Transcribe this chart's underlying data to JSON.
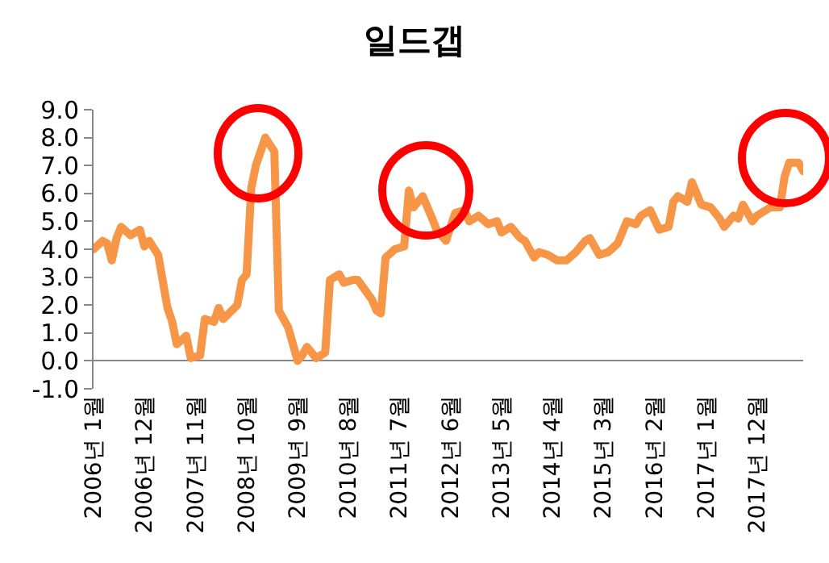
{
  "chart_data": {
    "type": "line",
    "title": "일드갭",
    "x": [
      "2006-01",
      "2006-03",
      "2006-04",
      "2006-05",
      "2006-06",
      "2006-07",
      "2006-09",
      "2006-11",
      "2006-12",
      "2007-01",
      "2007-03",
      "2007-05",
      "2007-06",
      "2007-07",
      "2007-09",
      "2007-10",
      "2007-12",
      "2008-01",
      "2008-03",
      "2008-04",
      "2008-05",
      "2008-08",
      "2008-09",
      "2008-10",
      "2008-11",
      "2008-12",
      "2009-02",
      "2009-04",
      "2009-05",
      "2009-07",
      "2009-09",
      "2009-10",
      "2009-11",
      "2010-01",
      "2010-03",
      "2010-04",
      "2010-06",
      "2010-07",
      "2010-09",
      "2010-10",
      "2011-01",
      "2011-02",
      "2011-03",
      "2011-04",
      "2011-06",
      "2011-08",
      "2011-09",
      "2011-10",
      "2011-12",
      "2012-02",
      "2012-03",
      "2012-05",
      "2012-07",
      "2012-09",
      "2012-10",
      "2012-12",
      "2013-02",
      "2013-04",
      "2013-05",
      "2013-07",
      "2013-09",
      "2013-10",
      "2013-12",
      "2014-01",
      "2014-03",
      "2014-05",
      "2014-07",
      "2014-09",
      "2014-11",
      "2014-12",
      "2015-02",
      "2015-04",
      "2015-06",
      "2015-08",
      "2015-10",
      "2015-11",
      "2016-01",
      "2016-03",
      "2016-05",
      "2016-06",
      "2016-07",
      "2016-09",
      "2016-10",
      "2016-12",
      "2017-02",
      "2017-04",
      "2017-05",
      "2017-07",
      "2017-08",
      "2017-09",
      "2017-11",
      "2017-12",
      "2018-03",
      "2018-05",
      "2018-06",
      "2018-07",
      "2018-09",
      "2018-10"
    ],
    "series": [
      {
        "color": "#f79646",
        "values": [
          4.0,
          4.3,
          4.2,
          3.6,
          4.4,
          4.8,
          4.5,
          4.7,
          4.1,
          4.3,
          3.8,
          1.9,
          1.4,
          0.6,
          0.9,
          0.1,
          0.2,
          1.5,
          1.4,
          1.9,
          1.5,
          2.0,
          2.9,
          3.1,
          6.2,
          7.0,
          8.0,
          7.5,
          1.8,
          1.2,
          0.0,
          0.2,
          0.5,
          0.1,
          0.3,
          2.9,
          3.1,
          2.8,
          2.9,
          2.9,
          2.2,
          1.8,
          1.7,
          3.7,
          4.0,
          4.1,
          6.1,
          5.5,
          5.9,
          5.1,
          4.7,
          4.3,
          5.3,
          5.4,
          5.0,
          5.2,
          4.9,
          5.0,
          4.6,
          4.8,
          4.4,
          4.3,
          3.7,
          3.9,
          3.8,
          3.6,
          3.6,
          3.9,
          4.3,
          4.4,
          3.8,
          3.9,
          4.2,
          5.0,
          4.9,
          5.2,
          5.4,
          4.7,
          4.8,
          5.7,
          5.9,
          5.7,
          6.4,
          5.6,
          5.5,
          5.1,
          4.8,
          5.2,
          5.1,
          5.6,
          5.0,
          5.2,
          5.5,
          5.5,
          6.6,
          7.1,
          7.1,
          6.8
        ]
      }
    ],
    "xlim": [
      "2006-01",
      "2018-10"
    ],
    "xticks": [
      {
        "value": "2006-01",
        "label": "2006년 1월"
      },
      {
        "value": "2006-12",
        "label": "2006년 12월"
      },
      {
        "value": "2007-11",
        "label": "2007년 11월"
      },
      {
        "value": "2008-10",
        "label": "2008년 10월"
      },
      {
        "value": "2009-09",
        "label": "2009년 9월"
      },
      {
        "value": "2010-08",
        "label": "2010년 8월"
      },
      {
        "value": "2011-07",
        "label": "2011년 7월"
      },
      {
        "value": "2012-06",
        "label": "2012년 6월"
      },
      {
        "value": "2013-05",
        "label": "2013년 5월"
      },
      {
        "value": "2014-04",
        "label": "2014년 4월"
      },
      {
        "value": "2015-03",
        "label": "2015년 3월"
      },
      {
        "value": "2016-02",
        "label": "2016년 2월"
      },
      {
        "value": "2017-01",
        "label": "2017년 1월"
      },
      {
        "value": "2017-12",
        "label": "2017년 12월"
      }
    ],
    "ylim": [
      -1,
      9
    ],
    "yticks": [
      {
        "value": -1,
        "label": "-1.0"
      },
      {
        "value": 0,
        "label": "0.0"
      },
      {
        "value": 1,
        "label": "1.0"
      },
      {
        "value": 2,
        "label": "2.0"
      },
      {
        "value": 3,
        "label": "3.0"
      },
      {
        "value": 4,
        "label": "4.0"
      },
      {
        "value": 5,
        "label": "5.0"
      },
      {
        "value": 6,
        "label": "6.0"
      },
      {
        "value": 7,
        "label": "7.0"
      },
      {
        "value": 8,
        "label": "8.0"
      },
      {
        "value": 9,
        "label": "9.0"
      }
    ],
    "grid": false,
    "marker": "none",
    "line_style": "solid"
  }
}
